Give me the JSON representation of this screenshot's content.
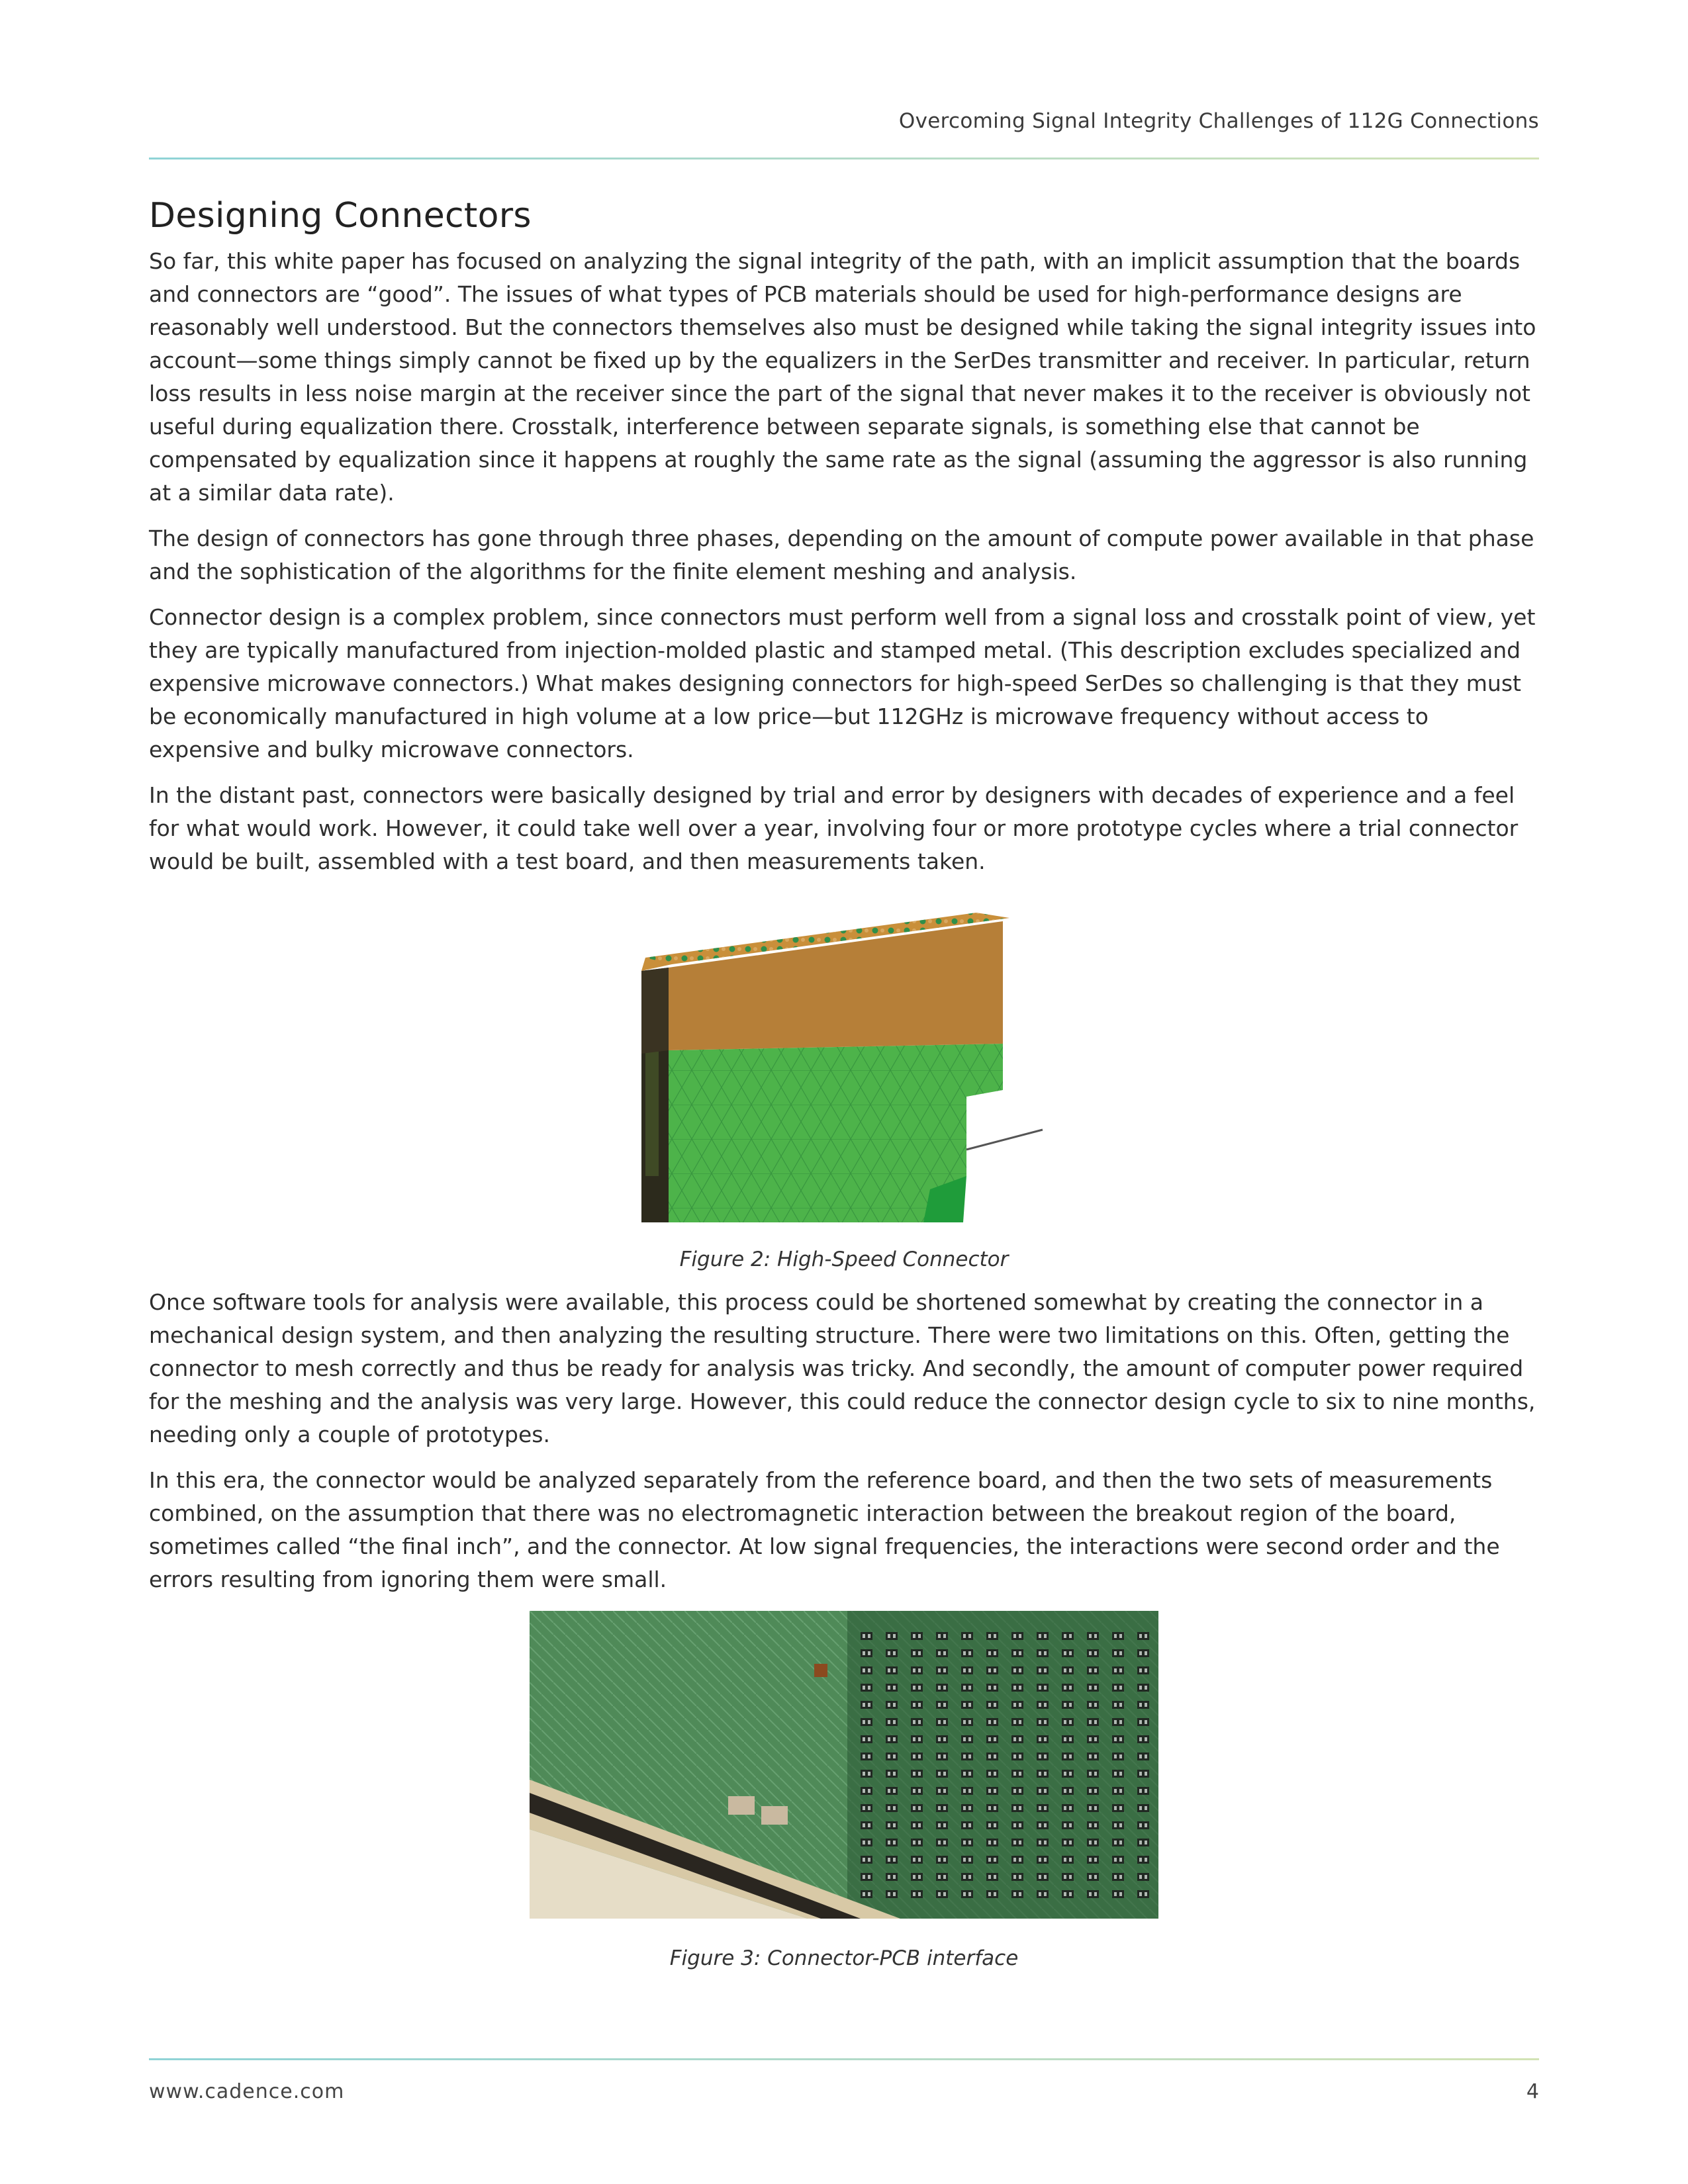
{
  "header": {
    "title": "Overcoming Signal Integrity Challenges  of 112G Connections"
  },
  "section": {
    "heading": "Designing Connectors",
    "paragraphs_a": [
      "So far, this white paper has focused on analyzing the signal integrity of the path, with an implicit assumption that the boards and connectors are “good”. The issues of what types of PCB materials should be used for high-performance designs are reasonably well understood. But the connectors themselves also must be designed while taking the signal integrity issues into account—some things simply cannot be fixed up by the equalizers in the SerDes transmitter and receiver. In particular, return loss results in less noise margin at the receiver since the part of the signal that never makes it to the receiver is obviously not useful during equalization there. Crosstalk, interference between separate signals, is something else that cannot be compensated by equalization since it happens at roughly the same rate as the signal (assuming the aggressor is also running at a similar data rate).",
      "The design of connectors has gone through three phases, depending on the amount of compute power available in that phase and the sophistication of the algorithms for the finite element meshing and analysis.",
      "Connector design is a complex problem, since connectors must perform well from a signal loss and crosstalk point of view, yet they are typically manufactured from injection-molded plastic and stamped metal. (This description excludes specialized and expensive microwave connectors.) What makes designing connectors for high-speed SerDes so challenging is that they must be economically manufactured in high volume at a low price—but 112GHz is microwave frequency without access to expensive and bulky microwave connectors.",
      "In the distant past, connectors were basically designed by trial and error by designers with decades of experience and a feel for what would work. However, it could take well over a year, involving four or more prototype cycles where a trial connector would be built, assembled with a test board, and then measurements taken."
    ],
    "figure2_caption": "Figure 2: High-Speed Connector",
    "paragraphs_b": [
      "Once software tools for analysis were available, this process could be shortened somewhat by creating the connector in a mechanical design system, and then analyzing the resulting structure. There were two limitations on this. Often, getting the connector to mesh correctly and thus be ready for analysis was tricky. And secondly, the amount of computer power required for the meshing and the analysis was very large. However, this could reduce the connector design cycle to six to nine months, needing only a couple of prototypes.",
      "In this era, the connector would be analyzed separately from the reference board, and then the two sets of measurements combined, on the assumption that there was no electromagnetic interaction between the breakout region of the board, sometimes called “the final inch”, and the connector. At low signal frequencies, the interactions were second order and the errors resulting from ignoring them were small."
    ],
    "figure3_caption": "Figure 3: Connector-PCB interface"
  },
  "footer": {
    "url": "www.cadence.com",
    "page_number": "4"
  }
}
